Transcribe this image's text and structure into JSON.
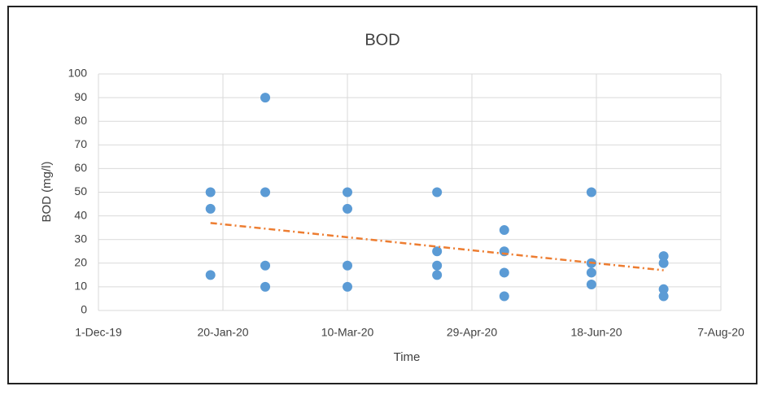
{
  "chart_data": {
    "type": "scatter",
    "title": "BOD",
    "x_label": "Time",
    "y_label": "BOD (mg/l)",
    "series": [
      {
        "name": "BOD",
        "color": "#5b9bd5",
        "x": [
          "2020-01-15",
          "2020-01-15",
          "2020-01-15",
          "2020-02-06",
          "2020-02-06",
          "2020-02-06",
          "2020-02-06",
          "2020-03-10",
          "2020-03-10",
          "2020-03-10",
          "2020-03-10",
          "2020-04-15",
          "2020-04-15",
          "2020-04-15",
          "2020-04-15",
          "2020-05-12",
          "2020-05-12",
          "2020-05-12",
          "2020-05-12",
          "2020-06-16",
          "2020-06-16",
          "2020-06-16",
          "2020-06-16",
          "2020-07-15",
          "2020-07-15",
          "2020-07-15",
          "2020-07-15"
        ],
        "values": [
          50,
          43,
          15,
          90,
          50,
          19,
          10,
          50,
          43,
          19,
          10,
          50,
          25,
          19,
          15,
          34,
          25,
          16,
          6,
          50,
          20,
          16,
          11,
          23,
          20,
          9,
          6
        ]
      }
    ],
    "trendline": {
      "color": "#ed7d31",
      "x": [
        "2020-01-15",
        "2020-07-15"
      ],
      "values": [
        37,
        17
      ]
    },
    "xlim": [
      "2019-12-01",
      "2020-08-07"
    ],
    "xticks": [
      {
        "value": "2019-12-01",
        "label": "1-Dec-19"
      },
      {
        "value": "2020-01-20",
        "label": "20-Jan-20"
      },
      {
        "value": "2020-03-10",
        "label": "10-Mar-20"
      },
      {
        "value": "2020-04-29",
        "label": "29-Apr-20"
      },
      {
        "value": "2020-06-18",
        "label": "18-Jun-20"
      },
      {
        "value": "2020-08-07",
        "label": "7-Aug-20"
      }
    ],
    "ylim": [
      0,
      100
    ],
    "yticks": [
      0,
      10,
      20,
      30,
      40,
      50,
      60,
      70,
      80,
      90,
      100
    ],
    "grid": true
  }
}
